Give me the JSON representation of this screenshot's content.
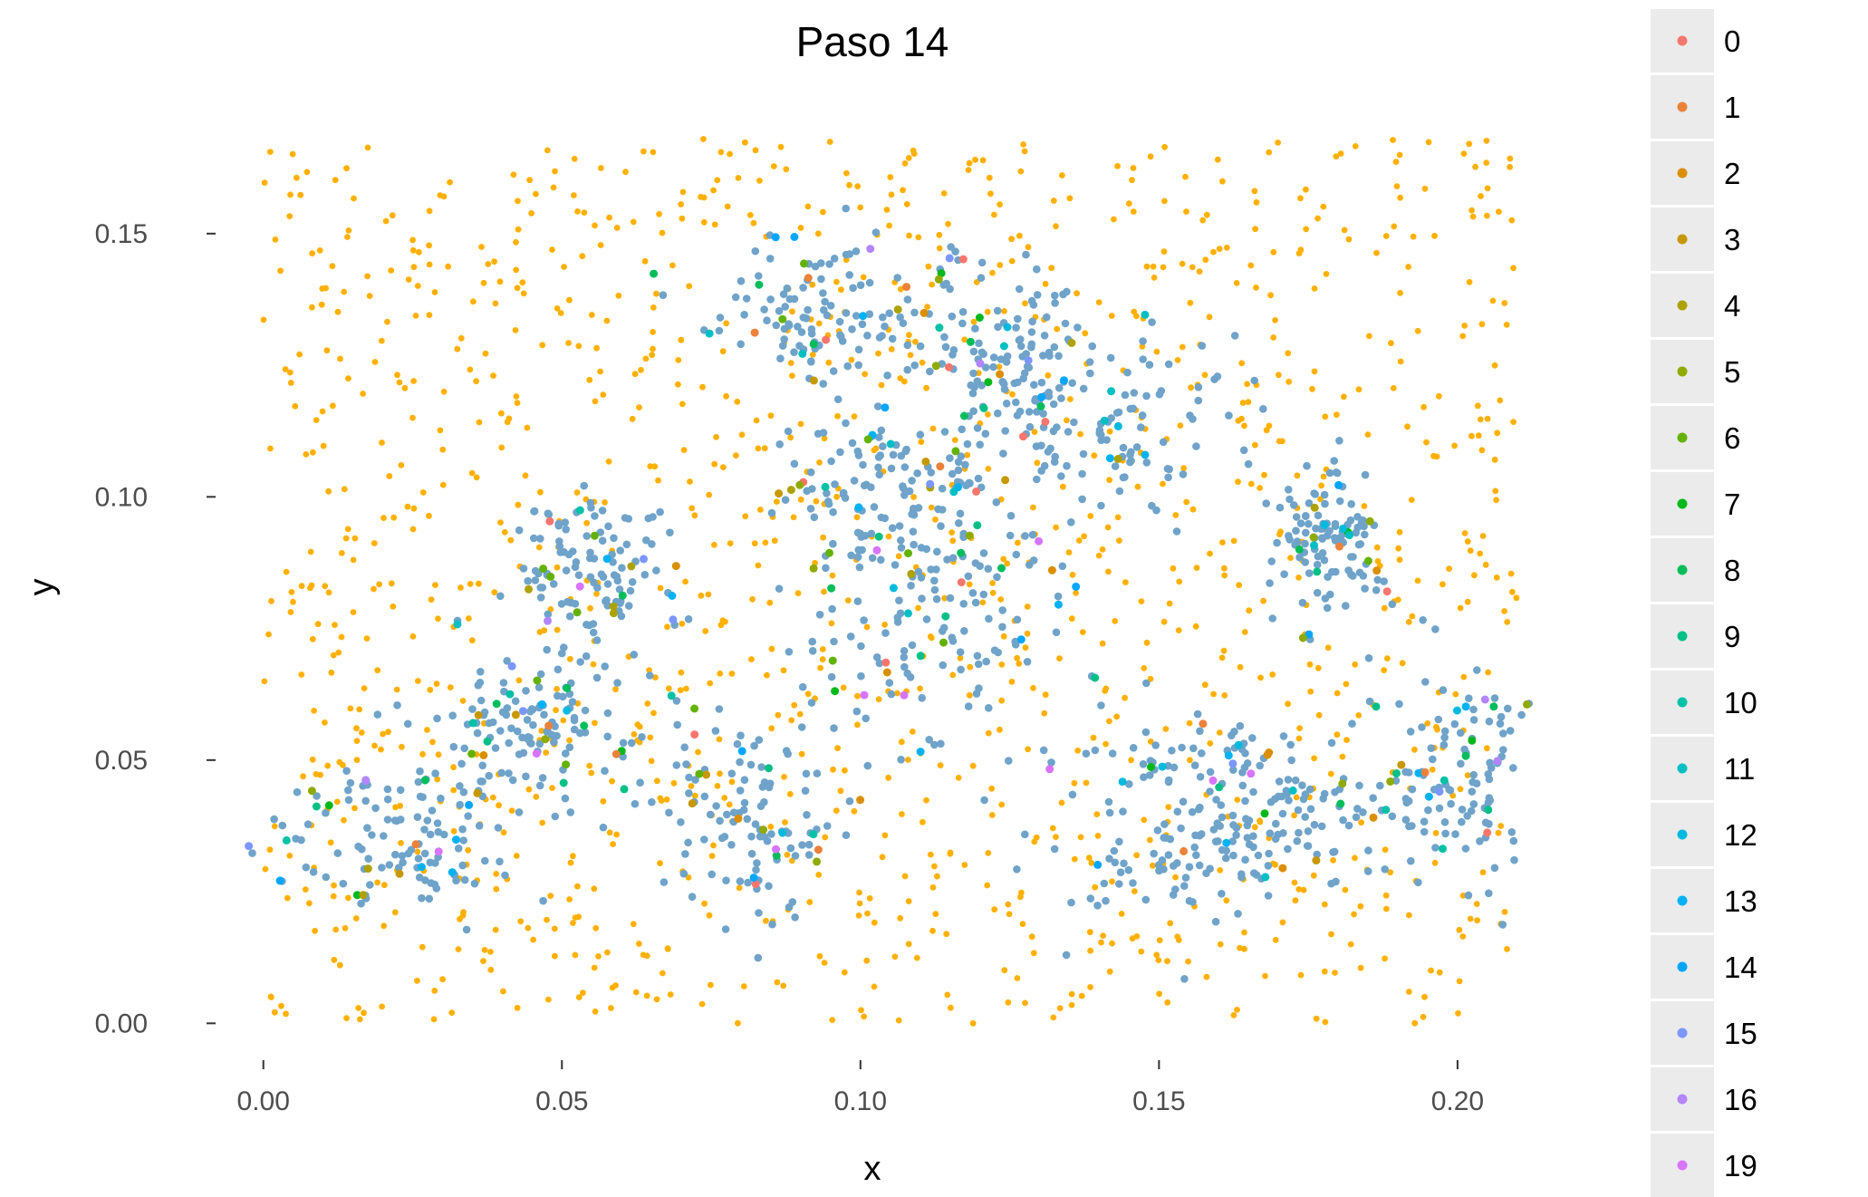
{
  "chart_data": {
    "type": "scatter",
    "title": "Paso  14",
    "xlabel": "x",
    "ylabel": "y",
    "xlim": [
      -0.008,
      0.212
    ],
    "ylim": [
      -0.007,
      0.172
    ],
    "x_ticks": [
      "0.00",
      "0.05",
      "0.10",
      "0.15",
      "0.20"
    ],
    "x_tick_values": [
      0.0,
      0.05,
      0.1,
      0.15,
      0.2
    ],
    "y_ticks": [
      "0.00",
      "0.05",
      "0.10",
      "0.15"
    ],
    "y_tick_values": [
      0.0,
      0.05,
      0.1,
      0.15
    ],
    "grid": false,
    "legend_position": "right",
    "legend": [
      {
        "label": "0",
        "color": "#F8766D"
      },
      {
        "label": "1",
        "color": "#E58700"
      },
      {
        "label": "2",
        "color": "#C99800"
      },
      {
        "label": "3",
        "color": "#A3A500"
      },
      {
        "label": "4",
        "color": "#6BB100"
      },
      {
        "label": "5",
        "color": "#00BA38"
      },
      {
        "label": "6",
        "color": "#00BF7D"
      },
      {
        "label": "7",
        "color": "#00C0AF"
      },
      {
        "label": "8",
        "color": "#00BCD8"
      },
      {
        "label": "9",
        "color": "#00B0F6"
      },
      {
        "label": "10",
        "color": "#619CFF"
      },
      {
        "label": "11",
        "color": "#B983FF"
      },
      {
        "label": "12",
        "color": "#E76BF3"
      },
      {
        "label": "13",
        "color": "#FD61D1"
      },
      {
        "label": "14",
        "color": "#FF67A4"
      },
      {
        "label": "15",
        "color": "#00BFC4"
      },
      {
        "label": "16",
        "color": "#7CAE00"
      },
      {
        "label": "19",
        "color": "#F564E3"
      }
    ],
    "legend_display": [
      {
        "label": "0",
        "color": "#F8766D"
      },
      {
        "label": "1",
        "color": "#EC8239"
      },
      {
        "label": "2",
        "color": "#DB8E00"
      },
      {
        "label": "3",
        "color": "#C79800"
      },
      {
        "label": "4",
        "color": "#AEA200"
      },
      {
        "label": "5",
        "color": "#8FAA00"
      },
      {
        "label": "6",
        "color": "#64B200"
      },
      {
        "label": "7",
        "color": "#00B81B"
      },
      {
        "label": "8",
        "color": "#00BD5C"
      },
      {
        "label": "9",
        "color": "#00C086"
      },
      {
        "label": "10",
        "color": "#00C1A7"
      },
      {
        "label": "11",
        "color": "#00BFC4"
      },
      {
        "label": "12",
        "color": "#00BADE"
      },
      {
        "label": "13",
        "color": "#00B2F3"
      },
      {
        "label": "14",
        "color": "#00A6FF"
      },
      {
        "label": "15",
        "color": "#7C96FF"
      },
      {
        "label": "16",
        "color": "#B385FF"
      },
      {
        "label": "19",
        "color": "#D874FD"
      }
    ],
    "background_series": {
      "name": "",
      "color": "#FFB000",
      "count": 1300
    },
    "cluster_series": {
      "name": "",
      "color": "#6FA3C9",
      "count": 1350
    },
    "clusters": [
      {
        "center": [
          0.025,
          0.036
        ],
        "spread": [
          0.012,
          0.01
        ]
      },
      {
        "center": [
          0.045,
          0.055
        ],
        "spread": [
          0.01,
          0.008
        ]
      },
      {
        "center": [
          0.055,
          0.085
        ],
        "spread": [
          0.008,
          0.01
        ]
      },
      {
        "center": [
          0.08,
          0.04
        ],
        "spread": [
          0.01,
          0.014
        ]
      },
      {
        "center": [
          0.095,
          0.135
        ],
        "spread": [
          0.012,
          0.01
        ]
      },
      {
        "center": [
          0.102,
          0.1
        ],
        "spread": [
          0.01,
          0.01
        ]
      },
      {
        "center": [
          0.112,
          0.075
        ],
        "spread": [
          0.012,
          0.014
        ]
      },
      {
        "center": [
          0.125,
          0.125
        ],
        "spread": [
          0.01,
          0.012
        ]
      },
      {
        "center": [
          0.14,
          0.115
        ],
        "spread": [
          0.014,
          0.012
        ]
      },
      {
        "center": [
          0.15,
          0.04
        ],
        "spread": [
          0.014,
          0.014
        ]
      },
      {
        "center": [
          0.17,
          0.04
        ],
        "spread": [
          0.012,
          0.01
        ]
      },
      {
        "center": [
          0.178,
          0.093
        ],
        "spread": [
          0.006,
          0.008
        ]
      },
      {
        "center": [
          0.2,
          0.045
        ],
        "spread": [
          0.01,
          0.012
        ]
      }
    ]
  }
}
